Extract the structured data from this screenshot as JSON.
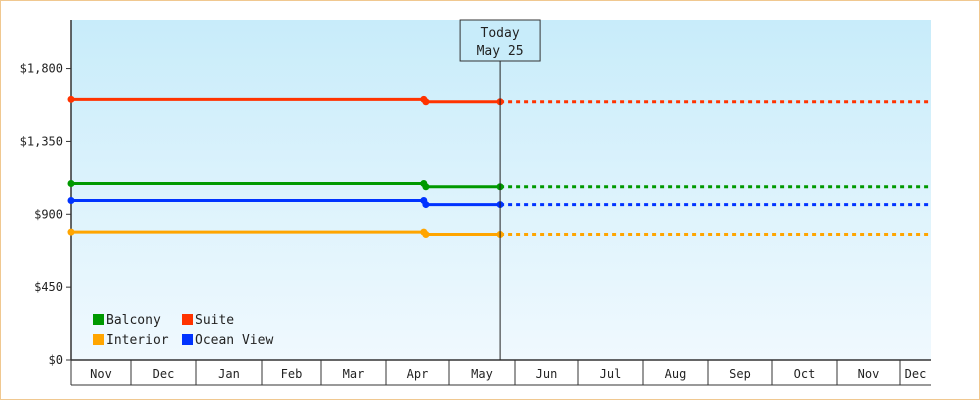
{
  "chart_data": {
    "type": "line",
    "title": "",
    "xlabel": "",
    "ylabel": "",
    "x_months": [
      "Nov",
      "Dec",
      "Jan",
      "Feb",
      "Mar",
      "Apr",
      "May",
      "Jun",
      "Jul",
      "Aug",
      "Sep",
      "Oct",
      "Nov",
      "Dec"
    ],
    "y_ticks": [
      "$0",
      "$450",
      "$900",
      "$1,350",
      "$1,800"
    ],
    "ylim": [
      0,
      2100
    ],
    "today": {
      "line1": "Today",
      "line2": "May 25"
    },
    "series": [
      {
        "name": "Suite",
        "color": "#ff3300",
        "history": [
          [
            "Nov 1",
            1610
          ],
          [
            "Apr 19",
            1610
          ],
          [
            "Apr 20",
            1595
          ],
          [
            "May 25",
            1595
          ]
        ],
        "forecast": [
          [
            "May 25",
            1595
          ],
          [
            "Dec 31",
            1595
          ]
        ]
      },
      {
        "name": "Balcony",
        "color": "#009900",
        "history": [
          [
            "Nov 1",
            1090
          ],
          [
            "Apr 19",
            1090
          ],
          [
            "Apr 20",
            1070
          ],
          [
            "May 25",
            1070
          ]
        ],
        "forecast": [
          [
            "May 25",
            1070
          ],
          [
            "Dec 31",
            1070
          ]
        ]
      },
      {
        "name": "Ocean View",
        "color": "#0033ff",
        "history": [
          [
            "Nov 1",
            985
          ],
          [
            "Apr 19",
            985
          ],
          [
            "Apr 20",
            960
          ],
          [
            "May 25",
            960
          ]
        ],
        "forecast": [
          [
            "May 25",
            960
          ],
          [
            "Dec 31",
            960
          ]
        ]
      },
      {
        "name": "Interior",
        "color": "#ffa500",
        "history": [
          [
            "Nov 1",
            790
          ],
          [
            "Apr 19",
            790
          ],
          [
            "Apr 20",
            775
          ],
          [
            "May 25",
            775
          ]
        ],
        "forecast": [
          [
            "May 25",
            775
          ],
          [
            "Dec 31",
            775
          ]
        ]
      }
    ],
    "legend": [
      {
        "name": "Balcony",
        "color": "#009900"
      },
      {
        "name": "Suite",
        "color": "#ff3300"
      },
      {
        "name": "Interior",
        "color": "#ffa500"
      },
      {
        "name": "Ocean View",
        "color": "#0033ff"
      }
    ],
    "legend_position": "bottom-left",
    "background_gradient": [
      "#c8ecfa",
      "#f0f9fe"
    ]
  }
}
